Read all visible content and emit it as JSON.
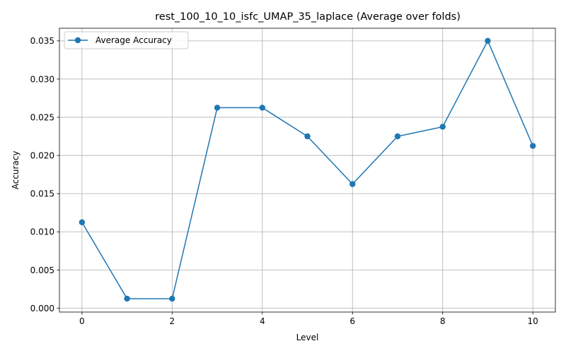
{
  "chart_data": {
    "type": "line",
    "title": "rest_100_10_10_isfc_UMAP_35_laplace (Average over folds)",
    "xlabel": "Level",
    "ylabel": "Accuracy",
    "x": [
      0,
      1,
      2,
      3,
      4,
      5,
      6,
      7,
      8,
      9,
      10
    ],
    "series": [
      {
        "name": "Average Accuracy",
        "color": "#1f77b4",
        "marker": "circle",
        "values": [
          0.01125,
          0.00125,
          0.00125,
          0.02625,
          0.02625,
          0.0225,
          0.01625,
          0.0225,
          0.02375,
          0.035,
          0.02125
        ]
      }
    ],
    "xlim": [
      -0.5,
      10.5
    ],
    "ylim": [
      -0.0005,
      0.03665
    ],
    "xticks": [
      0,
      2,
      4,
      6,
      8,
      10
    ],
    "xtick_labels": [
      "0",
      "2",
      "4",
      "6",
      "8",
      "10"
    ],
    "yticks": [
      0,
      0.005,
      0.01,
      0.015,
      0.02,
      0.025,
      0.03,
      0.035
    ],
    "ytick_labels": [
      "0.000",
      "0.005",
      "0.010",
      "0.015",
      "0.020",
      "0.025",
      "0.030",
      "0.035"
    ],
    "grid": true,
    "legend_position": "top-left"
  }
}
